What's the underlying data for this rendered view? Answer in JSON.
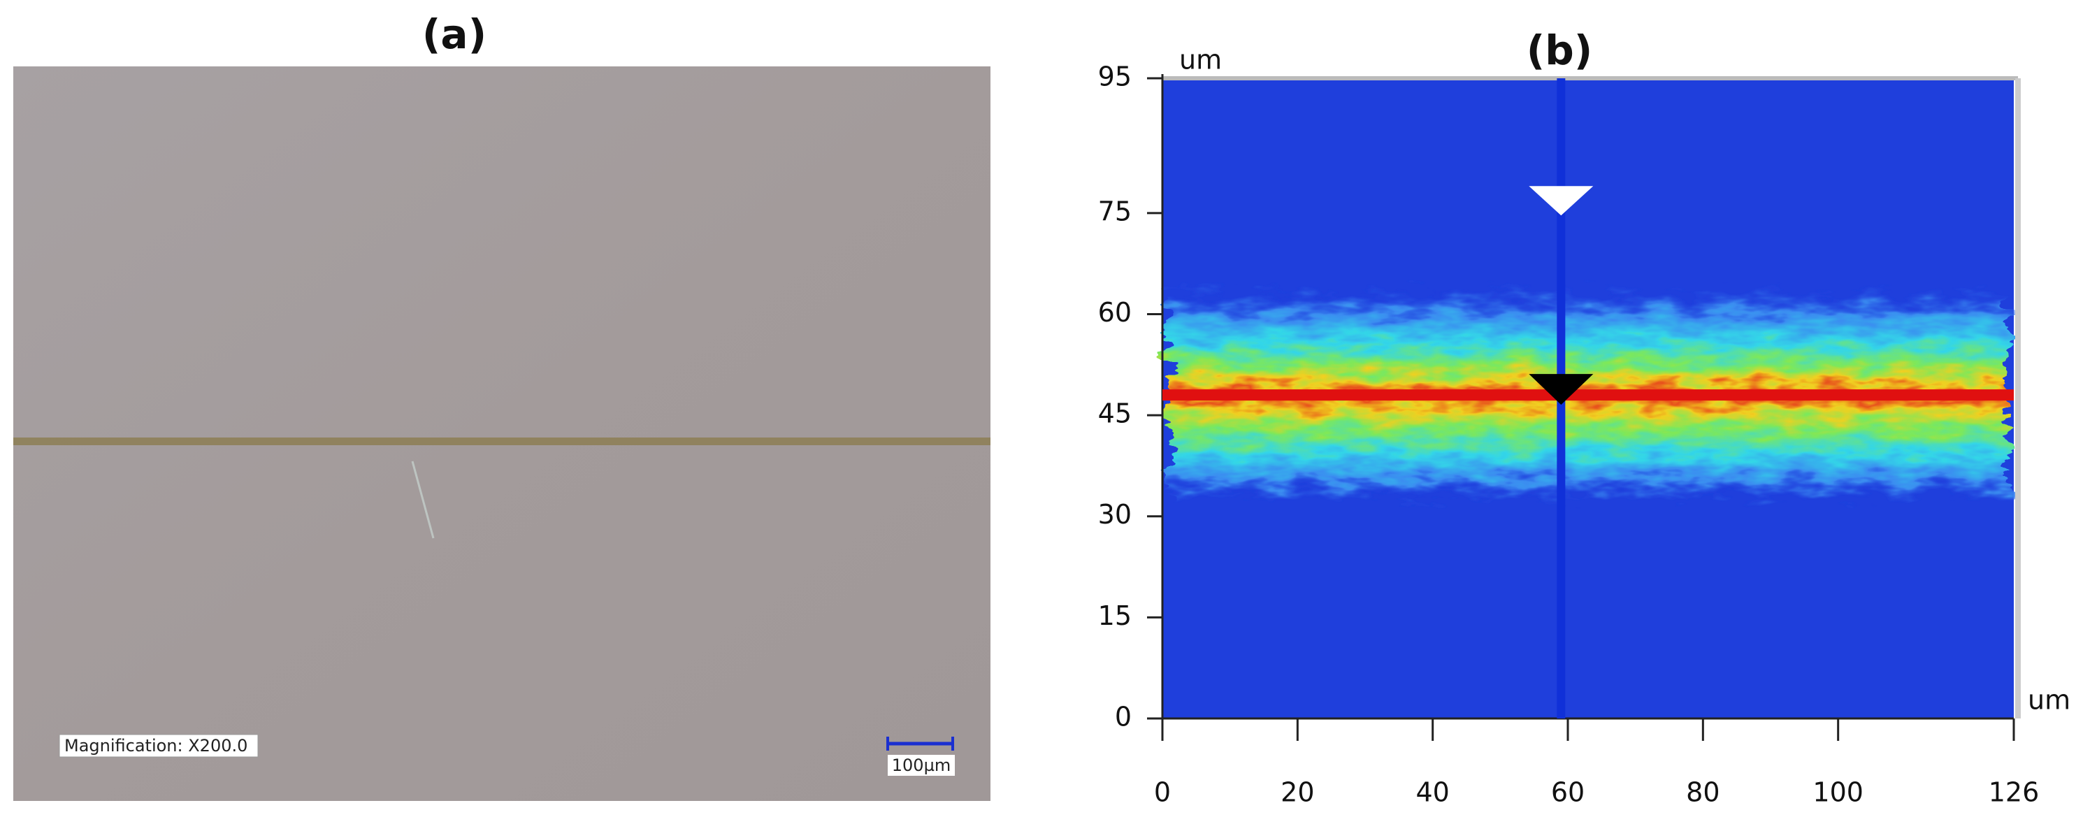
{
  "panel_a": {
    "label": "(a)",
    "magnification": "Magnification: X200.0",
    "scale_bar": "100µm"
  },
  "panel_b": {
    "label": "(b)",
    "y_unit": "um",
    "x_unit": "um",
    "xlim": [
      0,
      126
    ],
    "ylim": [
      0,
      95
    ],
    "xticks": [
      0,
      20,
      40,
      60,
      80,
      100,
      126
    ],
    "yticks": [
      0,
      15,
      30,
      45,
      60,
      75,
      95
    ],
    "cursor_x": 59,
    "cursor_y": 48
  }
}
